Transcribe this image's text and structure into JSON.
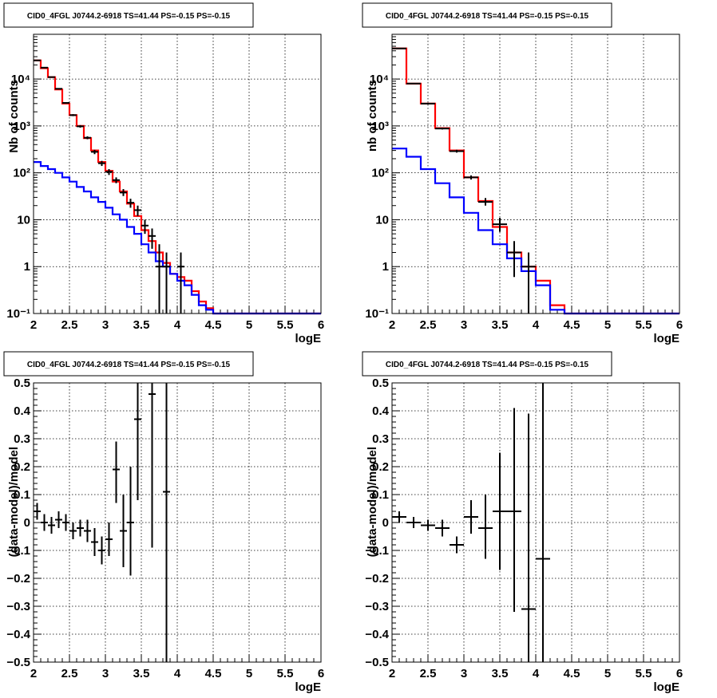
{
  "chart_data": [
    {
      "type": "step-histogram",
      "title": "CID0_4FGL J0744.2-6918 TS=41.44 PS=-0.15 PS=-0.15",
      "xlabel": "logE",
      "ylabel": "Nb of counts",
      "xlim": [
        2,
        6
      ],
      "ylim": [
        0.1,
        90000
      ],
      "yscale": "log",
      "grid": true,
      "xticks": [
        "2",
        "2.5",
        "3",
        "3.5",
        "4",
        "4.5",
        "5",
        "5.5",
        "6"
      ],
      "yticks": [
        {
          "v": 0.1,
          "l": "10⁻¹"
        },
        {
          "v": 1,
          "l": "1"
        },
        {
          "v": 10,
          "l": "10"
        },
        {
          "v": 100,
          "l": "10²"
        },
        {
          "v": 1000,
          "l": "10³"
        },
        {
          "v": 10000,
          "l": "10⁴"
        }
      ],
      "bin_edges": [
        2.0,
        2.1,
        2.2,
        2.3,
        2.4,
        2.5,
        2.6,
        2.7,
        2.8,
        2.9,
        3.0,
        3.1,
        3.2,
        3.3,
        3.4,
        3.5,
        3.6,
        3.7,
        3.8,
        3.9,
        4.0,
        4.1,
        4.2,
        4.3,
        4.4,
        4.5,
        4.6,
        4.7,
        4.8,
        4.9,
        5.0,
        5.1,
        5.2,
        5.3,
        5.4,
        5.5,
        5.6,
        5.7,
        5.8,
        5.9,
        6.0
      ],
      "series": [
        {
          "color": "#ff0000",
          "values": [
            25000,
            17000,
            11000,
            6000,
            3000,
            1700,
            1000,
            550,
            300,
            170,
            110,
            65,
            40,
            22,
            12,
            6,
            3.5,
            2,
            1.2,
            0.7,
            0.6,
            0.5,
            0.3,
            0.18,
            0.13,
            0.1,
            0.1,
            0.1,
            0.1,
            0.1,
            0.1,
            0.1,
            0.1,
            0.1,
            0.1,
            0.1,
            0.1,
            0.1,
            0.1,
            0.1
          ]
        },
        {
          "color": "#0000ff",
          "values": [
            170,
            140,
            120,
            100,
            80,
            65,
            50,
            40,
            30,
            24,
            18,
            13,
            10,
            7,
            5,
            3,
            2,
            1.3,
            1,
            0.7,
            0.5,
            0.4,
            0.25,
            0.15,
            0.12,
            0.1,
            0.1,
            0.1,
            0.1,
            0.1,
            0.1,
            0.1,
            0.1,
            0.1,
            0.1,
            0.1,
            0.1,
            0.1,
            0.1,
            0.1
          ]
        }
      ],
      "points": [
        {
          "x": 2.05,
          "y": 25000,
          "lo": 24500,
          "hi": 25500
        },
        {
          "x": 2.15,
          "y": 17500,
          "lo": 17100,
          "hi": 17900
        },
        {
          "x": 2.25,
          "y": 11000,
          "lo": 10700,
          "hi": 11300
        },
        {
          "x": 2.35,
          "y": 6200,
          "lo": 6000,
          "hi": 6400
        },
        {
          "x": 2.45,
          "y": 3100,
          "lo": 2990,
          "hi": 3210
        },
        {
          "x": 2.55,
          "y": 1700,
          "lo": 1620,
          "hi": 1780
        },
        {
          "x": 2.65,
          "y": 980,
          "lo": 920,
          "hi": 1040
        },
        {
          "x": 2.75,
          "y": 560,
          "lo": 520,
          "hi": 600
        },
        {
          "x": 2.85,
          "y": 280,
          "lo": 250,
          "hi": 310
        },
        {
          "x": 2.95,
          "y": 160,
          "lo": 140,
          "hi": 180
        },
        {
          "x": 3.05,
          "y": 105,
          "lo": 90,
          "hi": 120
        },
        {
          "x": 3.15,
          "y": 70,
          "lo": 60,
          "hi": 80
        },
        {
          "x": 3.25,
          "y": 38,
          "lo": 32,
          "hi": 45
        },
        {
          "x": 3.35,
          "y": 23,
          "lo": 18,
          "hi": 28
        },
        {
          "x": 3.45,
          "y": 16,
          "lo": 12,
          "hi": 20
        },
        {
          "x": 3.55,
          "y": 7.5,
          "lo": 5,
          "hi": 10
        },
        {
          "x": 3.65,
          "y": 4.5,
          "lo": 2.4,
          "hi": 6.5
        },
        {
          "x": 3.75,
          "y": 1,
          "lo": 0.1,
          "hi": 3
        },
        {
          "x": 3.85,
          "y": 1,
          "lo": 0.1,
          "hi": 2
        },
        {
          "x": 4.05,
          "y": 1,
          "lo": 0.1,
          "hi": 2
        }
      ]
    },
    {
      "type": "step-histogram",
      "title": "CID0_4FGL J0744.2-6918 TS=41.44 PS=-0.15 PS=-0.15",
      "xlabel": "logE",
      "ylabel": "nb of counts",
      "xlim": [
        2,
        6
      ],
      "ylim": [
        0.1,
        90000
      ],
      "yscale": "log",
      "grid": true,
      "xticks": [
        "2",
        "2.5",
        "3",
        "3.5",
        "4",
        "4.5",
        "5",
        "5.5",
        "6"
      ],
      "yticks": [
        {
          "v": 0.1,
          "l": "10⁻¹"
        },
        {
          "v": 1,
          "l": "1"
        },
        {
          "v": 10,
          "l": "10"
        },
        {
          "v": 100,
          "l": "10²"
        },
        {
          "v": 1000,
          "l": "10³"
        },
        {
          "v": 10000,
          "l": "10⁴"
        }
      ],
      "bin_edges": [
        2.0,
        2.2,
        2.4,
        2.6,
        2.8,
        3.0,
        3.2,
        3.4,
        3.6,
        3.8,
        4.0,
        4.2,
        4.4,
        4.6,
        4.8,
        5.0,
        5.2,
        5.4,
        5.6,
        5.8,
        6.0
      ],
      "series": [
        {
          "color": "#ff0000",
          "values": [
            45000,
            8000,
            3000,
            900,
            300,
            80,
            25,
            7,
            2,
            1,
            0.5,
            0.15,
            0.1,
            0.1,
            0.1,
            0.1,
            0.1,
            0.1,
            0.1,
            0.1
          ]
        },
        {
          "color": "#0000ff",
          "values": [
            330,
            220,
            120,
            60,
            30,
            14,
            6,
            3,
            1.5,
            0.8,
            0.4,
            0.12,
            0.1,
            0.1,
            0.1,
            0.1,
            0.1,
            0.1,
            0.1,
            0.1
          ]
        }
      ],
      "points": [
        {
          "x": 2.1,
          "y": 45000,
          "lo": 44000,
          "hi": 46000
        },
        {
          "x": 2.3,
          "y": 8000,
          "lo": 7800,
          "hi": 8200
        },
        {
          "x": 2.5,
          "y": 3000,
          "lo": 2900,
          "hi": 3100
        },
        {
          "x": 2.7,
          "y": 880,
          "lo": 840,
          "hi": 920
        },
        {
          "x": 2.9,
          "y": 290,
          "lo": 270,
          "hi": 310
        },
        {
          "x": 3.1,
          "y": 80,
          "lo": 72,
          "hi": 88
        },
        {
          "x": 3.3,
          "y": 24,
          "lo": 20,
          "hi": 29
        },
        {
          "x": 3.5,
          "y": 8,
          "lo": 5.5,
          "hi": 11
        },
        {
          "x": 3.7,
          "y": 2,
          "lo": 0.6,
          "hi": 3.5
        },
        {
          "x": 3.9,
          "y": 1,
          "lo": 0.1,
          "hi": 2
        }
      ]
    },
    {
      "type": "scatter-errorbars",
      "title": "CID0_4FGL J0744.2-6918 TS=41.44 PS=-0.15 PS=-0.15",
      "xlabel": "logE",
      "ylabel": "(data-model)/model",
      "xlim": [
        2,
        6
      ],
      "ylim": [
        -0.5,
        0.5
      ],
      "grid": true,
      "xticks": [
        "2",
        "2.5",
        "3",
        "3.5",
        "4",
        "4.5",
        "5",
        "5.5",
        "6"
      ],
      "yticks": [
        "−0.5",
        "−0.4",
        "−0.3",
        "−0.2",
        "−0.1",
        "0",
        "0.1",
        "0.2",
        "0.3",
        "0.4",
        "0.5"
      ],
      "half_width": 0.05,
      "points": [
        {
          "x": 2.05,
          "y": 0.04,
          "lo": 0.01,
          "hi": 0.07
        },
        {
          "x": 2.15,
          "y": 0.0,
          "lo": -0.03,
          "hi": 0.03
        },
        {
          "x": 2.25,
          "y": -0.01,
          "lo": -0.04,
          "hi": 0.02
        },
        {
          "x": 2.35,
          "y": 0.01,
          "lo": -0.02,
          "hi": 0.04
        },
        {
          "x": 2.45,
          "y": 0.0,
          "lo": -0.03,
          "hi": 0.03
        },
        {
          "x": 2.55,
          "y": -0.03,
          "lo": -0.06,
          "hi": 0.0
        },
        {
          "x": 2.65,
          "y": -0.02,
          "lo": -0.05,
          "hi": 0.01
        },
        {
          "x": 2.75,
          "y": -0.03,
          "lo": -0.07,
          "hi": 0.01
        },
        {
          "x": 2.85,
          "y": -0.07,
          "lo": -0.12,
          "hi": -0.02
        },
        {
          "x": 2.95,
          "y": -0.1,
          "lo": -0.15,
          "hi": -0.05
        },
        {
          "x": 3.05,
          "y": -0.06,
          "lo": -0.12,
          "hi": 0.0
        },
        {
          "x": 3.15,
          "y": 0.19,
          "lo": 0.07,
          "hi": 0.29
        },
        {
          "x": 3.25,
          "y": -0.03,
          "lo": -0.16,
          "hi": 0.1
        },
        {
          "x": 3.35,
          "y": 0.0,
          "lo": -0.19,
          "hi": 0.2
        },
        {
          "x": 3.45,
          "y": 0.37,
          "lo": 0.08,
          "hi": 0.5
        },
        {
          "x": 3.65,
          "y": 0.46,
          "lo": -0.09,
          "hi": 0.5
        },
        {
          "x": 3.85,
          "y": 0.11,
          "lo": -0.5,
          "hi": 0.5
        }
      ]
    },
    {
      "type": "scatter-errorbars",
      "title": "CID0_4FGL J0744.2-6918 TS=41.44 PS=-0.15 PS=-0.15",
      "xlabel": "logE",
      "ylabel": "(data-model)/model",
      "xlim": [
        2,
        6
      ],
      "ylim": [
        -0.5,
        0.5
      ],
      "grid": true,
      "xticks": [
        "2",
        "2.5",
        "3",
        "3.5",
        "4",
        "4.5",
        "5",
        "5.5",
        "6"
      ],
      "yticks": [
        "−0.5",
        "−0.4",
        "−0.3",
        "−0.2",
        "−0.1",
        "0",
        "0.1",
        "0.2",
        "0.3",
        "0.4",
        "0.5"
      ],
      "half_width": 0.1,
      "points": [
        {
          "x": 2.1,
          "y": 0.02,
          "lo": 0.0,
          "hi": 0.04
        },
        {
          "x": 2.3,
          "y": 0.0,
          "lo": -0.02,
          "hi": 0.02
        },
        {
          "x": 2.5,
          "y": -0.01,
          "lo": -0.03,
          "hi": 0.01
        },
        {
          "x": 2.7,
          "y": -0.02,
          "lo": -0.05,
          "hi": 0.01
        },
        {
          "x": 2.9,
          "y": -0.08,
          "lo": -0.11,
          "hi": -0.05
        },
        {
          "x": 3.1,
          "y": 0.02,
          "lo": -0.04,
          "hi": 0.08
        },
        {
          "x": 3.3,
          "y": -0.02,
          "lo": -0.13,
          "hi": 0.1
        },
        {
          "x": 3.5,
          "y": 0.04,
          "lo": -0.17,
          "hi": 0.25
        },
        {
          "x": 3.7,
          "y": 0.04,
          "lo": -0.32,
          "hi": 0.41
        },
        {
          "x": 3.9,
          "y": -0.31,
          "lo": -0.5,
          "hi": 0.39
        },
        {
          "x": 4.1,
          "y": -0.13,
          "lo": -0.5,
          "hi": 0.5
        }
      ]
    }
  ]
}
